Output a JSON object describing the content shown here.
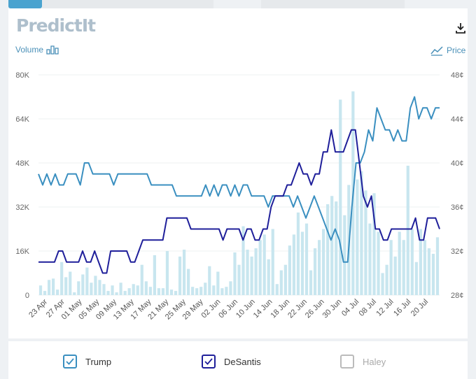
{
  "brand": {
    "logo_text": "PredictIt"
  },
  "toolbar": {
    "volume_label": "Volume",
    "price_label": "Price",
    "download_icon": "download-icon"
  },
  "colors": {
    "trump": "#3a8fc0",
    "desantis": "#1f1f9a",
    "haley": "#bbbbbb",
    "volume": "#c8e6ef"
  },
  "legend": [
    {
      "name": "Trump",
      "checked": true,
      "color": "#3a8fc0"
    },
    {
      "name": "DeSantis",
      "checked": true,
      "color": "#1f1f9a"
    },
    {
      "name": "Haley",
      "checked": false,
      "color": "#bbbbbb"
    }
  ],
  "chart_data": {
    "type": "line",
    "x_tick_labels": [
      "23 Apr",
      "27 Apr",
      "01 May",
      "05 May",
      "09 May",
      "13 May",
      "17 May",
      "21 May",
      "25 May",
      "29 May",
      "02 Jun",
      "06 Jun",
      "10 Jun",
      "14 Jun",
      "18 Jun",
      "22 Jun",
      "26 Jun",
      "30 Jun",
      "04 Jul",
      "08 Jul",
      "12 Jul",
      "16 Jul",
      "20 Jul"
    ],
    "left_axis": {
      "ticks": [
        "0",
        "16K",
        "32K",
        "48K",
        "64K",
        "80K"
      ],
      "ylim": [
        0,
        80000
      ]
    },
    "right_axis": {
      "ticks": [
        "28¢",
        "32¢",
        "36¢",
        "40¢",
        "44¢",
        "48¢"
      ],
      "ylim": [
        28,
        48
      ]
    },
    "volume": [
      3500,
      1500,
      5500,
      6000,
      2000,
      12000,
      6500,
      8500,
      1000,
      5000,
      7500,
      10000,
      4500,
      7000,
      5500,
      4000,
      1500,
      3500,
      1000,
      4500,
      1500,
      2500,
      4000,
      3500,
      11000,
      5000,
      3000,
      14500,
      2500,
      2500,
      16000,
      2000,
      1500,
      14000,
      16500,
      9500,
      3000,
      2500,
      3000,
      4500,
      10500,
      3500,
      8500,
      2500,
      3000,
      5000,
      15500,
      11000,
      25000,
      16500,
      14000,
      17000,
      20000,
      22000,
      13000,
      24000,
      4000,
      9000,
      11000,
      18000,
      22000,
      30000,
      23000,
      26000,
      9000,
      17000,
      20000,
      24000,
      33000,
      36000,
      34000,
      71000,
      29000,
      40000,
      74000,
      42000,
      45000,
      38000,
      26000,
      37000,
      23000,
      8000,
      11000,
      20000,
      14000,
      23000,
      20000,
      47000,
      24000,
      12000,
      24000,
      20000,
      17000,
      15000,
      21000
    ],
    "series": [
      {
        "name": "Trump",
        "values": [
          39,
          38,
          39,
          38,
          39,
          38,
          38,
          39,
          39,
          39,
          38,
          40,
          40,
          39,
          39,
          39,
          39,
          39,
          38,
          39,
          39,
          39,
          39,
          39,
          39,
          39,
          39,
          38,
          38,
          38,
          38,
          38,
          38,
          37,
          37,
          37,
          37,
          37,
          37,
          37,
          38,
          37,
          38,
          37,
          38,
          38,
          37,
          38,
          37,
          38,
          38,
          37,
          37,
          37,
          37,
          36,
          37,
          37,
          37,
          37,
          37,
          36,
          37,
          36,
          35,
          36,
          37,
          36,
          35,
          34,
          33,
          34,
          33,
          31,
          31,
          36,
          40,
          40,
          41,
          43,
          42,
          45,
          44,
          43,
          43,
          42,
          43,
          42,
          42,
          45,
          46,
          44,
          45,
          45,
          44,
          45,
          45
        ]
      },
      {
        "name": "DeSantis",
        "values": [
          31,
          31,
          31,
          31,
          31,
          32,
          32,
          31,
          31,
          31,
          31,
          32,
          31,
          31,
          32,
          31,
          30,
          30,
          32,
          32,
          32,
          32,
          32,
          31,
          31,
          32,
          33,
          33,
          33,
          33,
          33,
          33,
          35,
          35,
          35,
          35,
          35,
          35,
          34,
          34,
          34,
          34,
          34,
          34,
          34,
          34,
          33,
          34,
          34,
          34,
          34,
          33,
          34,
          34,
          33,
          33,
          34,
          34,
          36,
          37,
          37,
          37,
          38,
          38,
          39,
          40,
          39,
          39,
          38,
          39,
          39,
          41,
          41,
          43,
          41,
          41,
          41,
          42,
          43,
          43,
          40,
          37,
          36,
          37,
          34,
          34,
          33,
          33,
          34,
          34,
          34,
          34,
          34,
          34,
          35,
          33,
          33,
          35,
          35,
          35,
          34
        ]
      }
    ]
  }
}
